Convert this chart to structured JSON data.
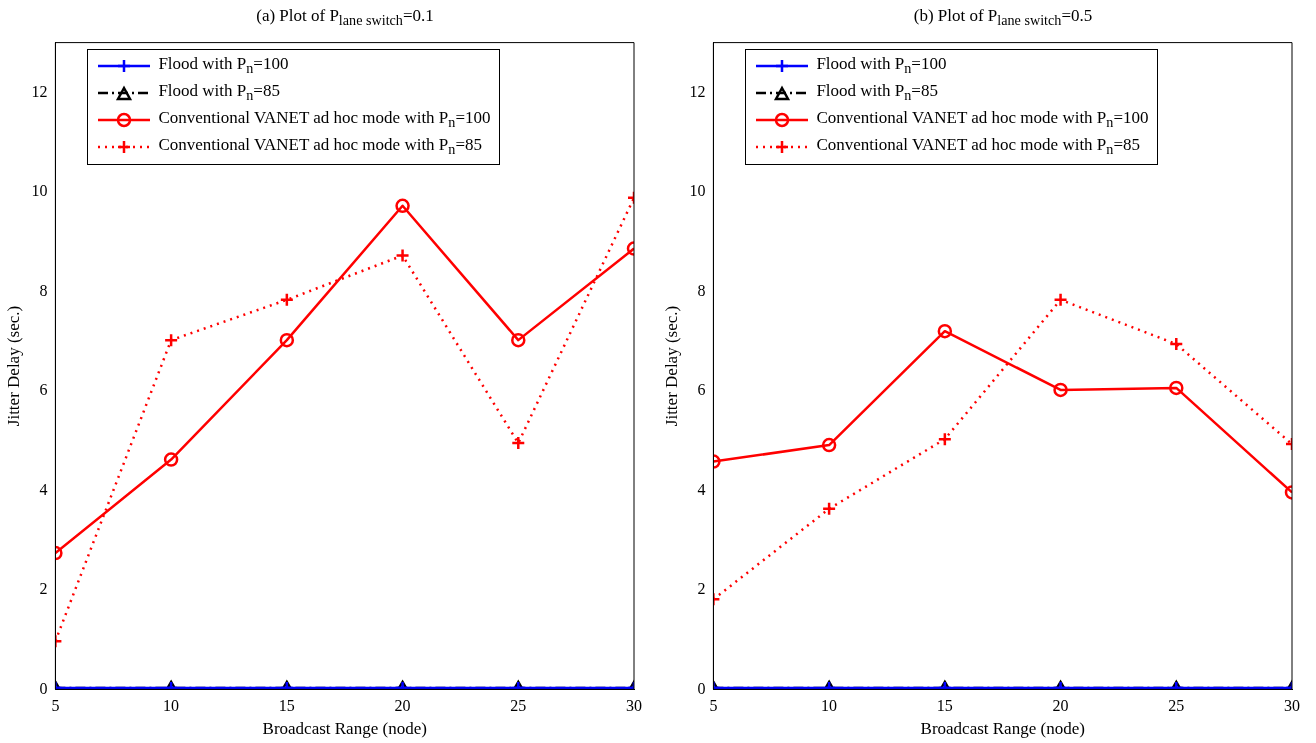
{
  "chart_data": [
    {
      "type": "line",
      "title": "(a) Plot of P$_{lane switch}$=0.1",
      "xlabel": "Broadcast Range (node)",
      "ylabel": "Jitter Delay (sec.)",
      "x": [
        5,
        10,
        15,
        20,
        25,
        30
      ],
      "xlim": [
        5,
        30
      ],
      "xticks": [
        5,
        10,
        15,
        20,
        25,
        30
      ],
      "ylim": [
        0,
        13
      ],
      "yticks": [
        0,
        2,
        4,
        6,
        8,
        10,
        12
      ],
      "grid": false,
      "legend": "top",
      "series": [
        {
          "name": "Flood with P$_{n}$=100",
          "color": "#0000ff",
          "marker": "cross",
          "line_style": "solid",
          "values": [
            0.03,
            0.03,
            0.03,
            0.03,
            0.03,
            0.03
          ]
        },
        {
          "name": "Flood with P$_{n}$=85",
          "color": "#000000",
          "marker": "triangle",
          "line_style": "dashed",
          "values": [
            0.03,
            0.03,
            0.03,
            0.03,
            0.03,
            0.03
          ]
        },
        {
          "name": "Conventional VANET ad hoc mode with P$_{n}$=100",
          "color": "#ff0000",
          "marker": "circle",
          "line_style": "solid",
          "values": [
            2.74,
            4.62,
            7.02,
            9.72,
            7.02,
            8.86
          ]
        },
        {
          "name": "Conventional VANET ad hoc mode with P$_{n}$=85",
          "color": "#ff0000",
          "marker": "cross",
          "line_style": "dotted",
          "values": [
            0.97,
            7.02,
            7.83,
            8.72,
            4.95,
            9.88
          ]
        }
      ]
    },
    {
      "type": "line",
      "title": "(b) Plot of P$_{lane switch}$=0.5",
      "xlabel": "Broadcast Range (node)",
      "ylabel": "Jitter Delay (sec.)",
      "x": [
        5,
        10,
        15,
        20,
        25,
        30
      ],
      "xlim": [
        5,
        30
      ],
      "xticks": [
        5,
        10,
        15,
        20,
        25,
        30
      ],
      "ylim": [
        0,
        13
      ],
      "yticks": [
        0,
        2,
        4,
        6,
        8,
        10,
        12
      ],
      "grid": false,
      "legend": "top",
      "series": [
        {
          "name": "Flood with P$_{n}$=100",
          "color": "#0000ff",
          "marker": "cross",
          "line_style": "solid",
          "values": [
            0.03,
            0.03,
            0.03,
            0.03,
            0.03,
            0.03
          ]
        },
        {
          "name": "Flood with P$_{n}$=85",
          "color": "#000000",
          "marker": "triangle",
          "line_style": "dashed",
          "values": [
            0.03,
            0.03,
            0.03,
            0.03,
            0.03,
            0.03
          ]
        },
        {
          "name": "Conventional VANET ad hoc mode with P$_{n}$=100",
          "color": "#ff0000",
          "marker": "circle",
          "line_style": "solid",
          "values": [
            4.58,
            4.91,
            7.2,
            6.02,
            6.06,
            3.96
          ]
        },
        {
          "name": "Conventional VANET ad hoc mode with P$_{n}$=85",
          "color": "#ff0000",
          "marker": "cross",
          "line_style": "dotted",
          "values": [
            1.81,
            3.63,
            5.03,
            7.83,
            6.94,
            4.93
          ]
        }
      ]
    }
  ]
}
